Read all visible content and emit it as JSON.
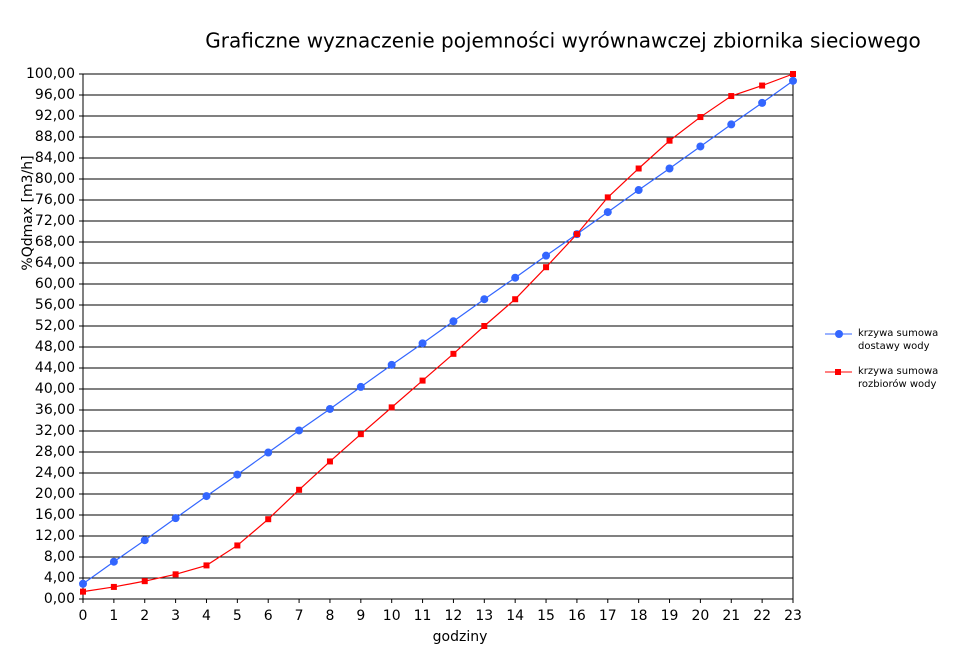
{
  "chart_data": {
    "type": "line",
    "title": "Graficzne wyznaczenie pojemności wyrównawczej zbiornika sieciowego",
    "x_label": "godziny",
    "y_label": "%Qdmax [m3/h]",
    "x": [
      0,
      1,
      2,
      3,
      4,
      5,
      6,
      7,
      8,
      9,
      10,
      11,
      12,
      13,
      14,
      15,
      16,
      17,
      18,
      19,
      20,
      21,
      22,
      23
    ],
    "xlim": [
      0,
      23
    ],
    "xticks": [
      0,
      1,
      2,
      3,
      4,
      5,
      6,
      7,
      8,
      9,
      10,
      11,
      12,
      13,
      14,
      15,
      16,
      17,
      18,
      19,
      20,
      21,
      22,
      23
    ],
    "ylim": [
      0,
      100
    ],
    "yticks": [
      {
        "value": 0,
        "label": "0,00"
      },
      {
        "value": 4,
        "label": "4,00"
      },
      {
        "value": 8,
        "label": "8,00"
      },
      {
        "value": 12,
        "label": "12,00"
      },
      {
        "value": 16,
        "label": "16,00"
      },
      {
        "value": 20,
        "label": "20,00"
      },
      {
        "value": 24,
        "label": "24,00"
      },
      {
        "value": 28,
        "label": "28,00"
      },
      {
        "value": 32,
        "label": "32,00"
      },
      {
        "value": 36,
        "label": "36,00"
      },
      {
        "value": 40,
        "label": "40,00"
      },
      {
        "value": 44,
        "label": "44,00"
      },
      {
        "value": 48,
        "label": "48,00"
      },
      {
        "value": 52,
        "label": "52,00"
      },
      {
        "value": 56,
        "label": "56,00"
      },
      {
        "value": 60,
        "label": "60,00"
      },
      {
        "value": 64,
        "label": "64,00"
      },
      {
        "value": 68,
        "label": "68,00"
      },
      {
        "value": 72,
        "label": "72,00"
      },
      {
        "value": 76,
        "label": "76,00"
      },
      {
        "value": 80,
        "label": "80,00"
      },
      {
        "value": 84,
        "label": "84,00"
      },
      {
        "value": 88,
        "label": "88,00"
      },
      {
        "value": 92,
        "label": "92,00"
      },
      {
        "value": 96,
        "label": "96,00"
      },
      {
        "value": 100,
        "label": "100,00"
      }
    ],
    "grid": true,
    "legend": "right",
    "series": [
      {
        "name": "krzywa sumowa dostawy wody",
        "color": "#3366ff",
        "marker": "circle",
        "values": [
          2.9,
          7.1,
          11.2,
          15.4,
          19.6,
          23.7,
          27.9,
          32.1,
          36.2,
          40.4,
          44.6,
          48.7,
          52.9,
          57.1,
          61.2,
          65.4,
          69.5,
          73.7,
          77.9,
          82.0,
          86.2,
          90.4,
          94.5,
          98.7
        ]
      },
      {
        "name": "krzywa sumowa rozbiorów wody",
        "color": "#ff0000",
        "marker": "square",
        "values": [
          1.4,
          2.3,
          3.4,
          4.7,
          6.4,
          10.2,
          15.2,
          20.8,
          26.2,
          31.4,
          36.5,
          41.6,
          46.7,
          52.0,
          57.1,
          63.2,
          69.5,
          76.5,
          82.0,
          87.3,
          91.8,
          95.8,
          97.8,
          100
        ]
      }
    ]
  }
}
